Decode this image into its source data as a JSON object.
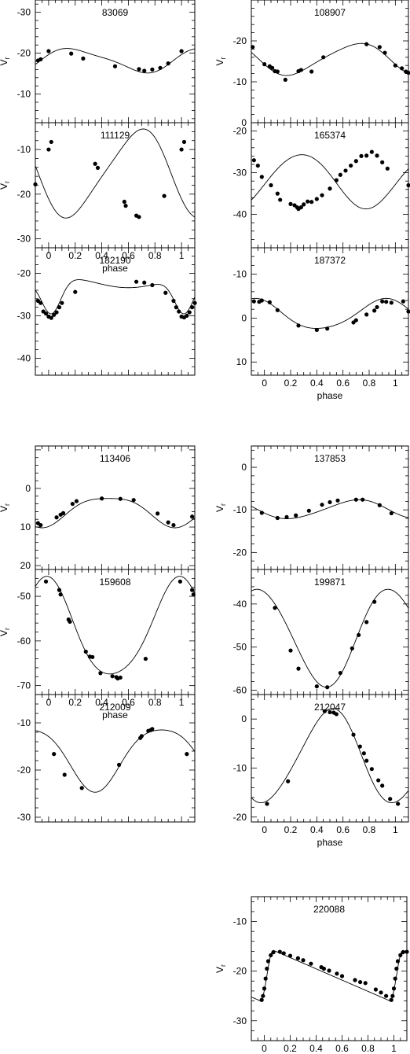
{
  "figure": {
    "xlabel": "phase",
    "ylabel": "V",
    "ylabel_sub": "r"
  },
  "chart_data": [
    {
      "id": "83069",
      "type": "scatter",
      "title": "83069",
      "xlabel": "",
      "ylabel": "Vr",
      "xlim": [
        -0.1,
        1.1
      ],
      "ylim": [
        -33,
        -3
      ],
      "invert_y": true,
      "xticks": [],
      "yticks": [
        -10,
        -20,
        -30
      ],
      "points": [
        [
          -0.08,
          -18.2
        ],
        [
          -0.06,
          -18.5
        ],
        [
          0.0,
          -20.5
        ],
        [
          0.17,
          -19.9
        ],
        [
          0.26,
          -18.7
        ],
        [
          0.5,
          -16.8
        ],
        [
          0.68,
          -16.1
        ],
        [
          0.72,
          -15.7
        ],
        [
          0.78,
          -16.0
        ],
        [
          0.84,
          -16.4
        ],
        [
          0.9,
          -17.5
        ],
        [
          1.0,
          -20.5
        ]
      ],
      "curve": {
        "mean": -18.3,
        "amp": 2.8,
        "phase_max": 0.7,
        "harm2": 0.6,
        "harm2_phase": 0.3
      }
    },
    {
      "id": "108907",
      "type": "scatter",
      "title": "108907",
      "xlabel": "",
      "ylabel": "Vr",
      "xlim": [
        -0.1,
        1.1
      ],
      "ylim": [
        -30,
        0
      ],
      "invert_y": false,
      "xticks": [],
      "yticks": [
        0,
        -10,
        -20
      ],
      "points": [
        [
          -0.09,
          -18.5
        ],
        [
          0.0,
          -14.3
        ],
        [
          0.04,
          -13.8
        ],
        [
          0.06,
          -13.4
        ],
        [
          0.08,
          -12.6
        ],
        [
          0.1,
          -12.5
        ],
        [
          0.16,
          -10.5
        ],
        [
          0.26,
          -12.6
        ],
        [
          0.28,
          -12.9
        ],
        [
          0.36,
          -12.5
        ],
        [
          0.45,
          -16.0
        ],
        [
          0.78,
          -19.2
        ],
        [
          0.88,
          -18.5
        ],
        [
          0.92,
          -17.1
        ],
        [
          1.0,
          -14.0
        ],
        [
          1.05,
          -13.3
        ],
        [
          1.08,
          -12.5
        ],
        [
          1.1,
          -12.2
        ]
      ],
      "curve": {
        "mean": -15.6,
        "amp": 3.8,
        "phase_max": 0.2,
        "harm2": 0.5,
        "harm2_phase": 0.1
      }
    },
    {
      "id": "111129",
      "type": "scatter",
      "title": "111129",
      "xlabel": "phase",
      "ylabel": "Vr",
      "xlim": [
        -0.1,
        1.1
      ],
      "ylim": [
        -4,
        -32
      ],
      "invert_y": false,
      "xticks": [
        0,
        0.2,
        0.4,
        0.6,
        0.8,
        1
      ],
      "yticks": [
        -10,
        -20,
        -30
      ],
      "points": [
        [
          -0.1,
          -17.8
        ],
        [
          0.0,
          -10.0
        ],
        [
          0.02,
          -8.3
        ],
        [
          0.35,
          -13.2
        ],
        [
          0.37,
          -14.1
        ],
        [
          0.57,
          -21.7
        ],
        [
          0.58,
          -22.6
        ],
        [
          0.66,
          -24.8
        ],
        [
          0.68,
          -25.1
        ],
        [
          0.87,
          -20.4
        ],
        [
          1.0,
          -10.0
        ],
        [
          1.02,
          -8.3
        ]
      ],
      "curve": {
        "mean": -15.3,
        "amp": 9.6,
        "phase_max": 0.67,
        "harm2": 1.4,
        "harm2_phase": 0.8
      }
    },
    {
      "id": "165374",
      "type": "scatter",
      "title": "165374",
      "xlabel": "",
      "ylabel": "",
      "xlim": [
        -0.1,
        1.1
      ],
      "ylim": [
        -18,
        -48
      ],
      "invert_y": false,
      "xticks": [],
      "yticks": [
        -20,
        -30,
        -40
      ],
      "points": [
        [
          -0.08,
          -27.0
        ],
        [
          -0.05,
          -28.3
        ],
        [
          -0.02,
          -31.0
        ],
        [
          0.05,
          -33.0
        ],
        [
          0.1,
          -35.0
        ],
        [
          0.12,
          -36.5
        ],
        [
          0.2,
          -37.5
        ],
        [
          0.23,
          -37.8
        ],
        [
          0.25,
          -38.3
        ],
        [
          0.26,
          -38.7
        ],
        [
          0.28,
          -38.3
        ],
        [
          0.3,
          -37.6
        ],
        [
          0.33,
          -36.9
        ],
        [
          0.36,
          -37.0
        ],
        [
          0.4,
          -36.3
        ],
        [
          0.44,
          -35.4
        ],
        [
          0.5,
          -33.8
        ],
        [
          0.55,
          -31.8
        ],
        [
          0.58,
          -30.5
        ],
        [
          0.62,
          -29.5
        ],
        [
          0.66,
          -28.3
        ],
        [
          0.7,
          -27.2
        ],
        [
          0.74,
          -26.0
        ],
        [
          0.78,
          -25.9
        ],
        [
          0.82,
          -25.0
        ],
        [
          0.86,
          -25.9
        ],
        [
          0.9,
          -27.5
        ],
        [
          0.94,
          -29.0
        ],
        [
          1.1,
          -33.0
        ]
      ],
      "curve": {
        "mean": -31.9,
        "amp": 6.5,
        "phase_max": 0.28,
        "harm2": 0.3,
        "harm2_phase": 0.5
      }
    },
    {
      "id": "182190",
      "type": "scatter",
      "title": "182190",
      "xlabel": "",
      "ylabel": "",
      "xlim": [
        -0.1,
        1.1
      ],
      "ylim": [
        -14,
        -44
      ],
      "invert_y": false,
      "xticks": [],
      "yticks": [
        -20,
        -30,
        -40
      ],
      "points": [
        [
          -0.08,
          -26.5
        ],
        [
          -0.06,
          -27.0
        ],
        [
          -0.04,
          -29.0
        ],
        [
          -0.02,
          -29.5
        ],
        [
          0.0,
          -30.2
        ],
        [
          0.02,
          -30.5
        ],
        [
          0.04,
          -29.8
        ],
        [
          0.06,
          -29.2
        ],
        [
          0.08,
          -28.0
        ],
        [
          0.1,
          -27.0
        ],
        [
          0.2,
          -24.4
        ],
        [
          0.66,
          -22.0
        ],
        [
          0.72,
          -22.2
        ],
        [
          0.78,
          -22.8
        ],
        [
          0.88,
          -24.6
        ],
        [
          0.94,
          -26.5
        ],
        [
          0.96,
          -28.0
        ],
        [
          0.98,
          -29.0
        ],
        [
          1.0,
          -30.2
        ],
        [
          1.02,
          -30.4
        ],
        [
          1.04,
          -30.0
        ],
        [
          1.06,
          -29.2
        ],
        [
          1.08,
          -28.0
        ],
        [
          1.1,
          -27.0
        ]
      ],
      "curve": {
        "mean": -23.4,
        "amp": 0.0,
        "phase_max": 0.5,
        "harm2": 0.0,
        "harm2_phase": 0.0,
        "eccentric": true,
        "base": -22.2,
        "dip": -8.4,
        "dip_phase": 0.02,
        "dip_width": 0.16
      }
    },
    {
      "id": "187372",
      "type": "scatter",
      "title": "187372",
      "xlabel": "phase",
      "ylabel": "",
      "xlim": [
        -0.1,
        1.1
      ],
      "ylim": [
        -16,
        13
      ],
      "invert_y": false,
      "xticks": [
        0,
        0.2,
        0.4,
        0.6,
        0.8,
        1
      ],
      "yticks": [
        10,
        0,
        -10
      ],
      "points": [
        [
          -0.08,
          -3.8
        ],
        [
          -0.04,
          -3.7
        ],
        [
          -0.02,
          -4.0
        ],
        [
          0.04,
          -3.6
        ],
        [
          0.1,
          -1.8
        ],
        [
          0.26,
          1.7
        ],
        [
          0.4,
          2.7
        ],
        [
          0.48,
          2.4
        ],
        [
          0.68,
          1.0
        ],
        [
          0.7,
          0.5
        ],
        [
          0.78,
          -0.8
        ],
        [
          0.84,
          -1.7
        ],
        [
          0.86,
          -2.5
        ],
        [
          0.9,
          -3.8
        ],
        [
          0.93,
          -3.7
        ],
        [
          0.97,
          -3.5
        ],
        [
          1.06,
          -3.8
        ],
        [
          1.1,
          -1.5
        ]
      ],
      "curve": {
        "mean": -0.7,
        "amp": 3.4,
        "phase_max": 0.42,
        "harm2": 0.4,
        "harm2_phase": 0.2
      }
    },
    {
      "id": "113406",
      "type": "scatter",
      "title": "113406",
      "xlabel": "",
      "ylabel": "Vr",
      "xlim": [
        -0.1,
        1.1
      ],
      "ylim": [
        -11,
        21
      ],
      "invert_y": false,
      "xticks": [],
      "yticks": [
        20,
        10,
        0
      ],
      "points": [
        [
          -0.08,
          9.0
        ],
        [
          -0.06,
          9.5
        ],
        [
          0.06,
          7.5
        ],
        [
          0.09,
          6.8
        ],
        [
          0.11,
          6.4
        ],
        [
          0.18,
          4.0
        ],
        [
          0.21,
          3.3
        ],
        [
          0.4,
          2.6
        ],
        [
          0.54,
          2.7
        ],
        [
          0.64,
          3.0
        ],
        [
          0.82,
          6.5
        ],
        [
          0.9,
          8.8
        ],
        [
          0.94,
          9.5
        ],
        [
          1.08,
          7.3
        ]
      ],
      "curve": {
        "mean": 5.6,
        "amp": 3.8,
        "phase_max": 0.95,
        "harm2": 0.8,
        "harm2_phase": 0.45
      }
    },
    {
      "id": "137853",
      "type": "scatter",
      "title": "137853",
      "xlabel": "",
      "ylabel": "Vr",
      "xlim": [
        -0.1,
        1.1
      ],
      "ylim": [
        5,
        -24
      ],
      "invert_y": true,
      "xticks": [],
      "yticks": [
        0,
        -10,
        -20
      ],
      "points": [
        [
          -0.02,
          -10.7
        ],
        [
          0.1,
          -11.9
        ],
        [
          0.17,
          -11.7
        ],
        [
          0.24,
          -11.3
        ],
        [
          0.34,
          -10.2
        ],
        [
          0.44,
          -8.8
        ],
        [
          0.5,
          -8.2
        ],
        [
          0.56,
          -7.8
        ],
        [
          0.7,
          -7.6
        ],
        [
          0.75,
          -7.6
        ],
        [
          0.88,
          -8.9
        ],
        [
          0.97,
          -10.8
        ]
      ],
      "curve": {
        "mean": -9.9,
        "amp": 2.2,
        "phase_max": 0.7,
        "harm2": 0.2,
        "harm2_phase": 0.3
      }
    },
    {
      "id": "159608",
      "type": "scatter",
      "title": "159608",
      "xlabel": "phase",
      "ylabel": "Vr",
      "xlim": [
        -0.1,
        1.1
      ],
      "ylim": [
        -44,
        -72
      ],
      "invert_y": false,
      "xticks": [
        0,
        0.2,
        0.4,
        0.6,
        0.8,
        1
      ],
      "yticks": [
        -50,
        -60,
        -70
      ],
      "points": [
        [
          -0.02,
          -46.7
        ],
        [
          0.08,
          -48.6
        ],
        [
          0.09,
          -49.6
        ],
        [
          0.15,
          -55.2
        ],
        [
          0.16,
          -55.7
        ],
        [
          0.28,
          -62.4
        ],
        [
          0.31,
          -63.5
        ],
        [
          0.33,
          -63.6
        ],
        [
          0.39,
          -67.2
        ],
        [
          0.48,
          -67.9
        ],
        [
          0.51,
          -68.1
        ],
        [
          0.52,
          -68.4
        ],
        [
          0.54,
          -68.2
        ],
        [
          0.73,
          -64.0
        ],
        [
          0.99,
          -46.7
        ],
        [
          1.08,
          -48.6
        ],
        [
          1.09,
          -49.6
        ]
      ],
      "curve": {
        "mean": -57.8,
        "amp": 10.9,
        "phase_max": 0.98,
        "harm2": 1.4,
        "harm2_phase": 0.5
      }
    },
    {
      "id": "199871",
      "type": "scatter",
      "title": "199871",
      "xlabel": "",
      "ylabel": "",
      "xlim": [
        -0.1,
        1.1
      ],
      "ylim": [
        -32,
        -61
      ],
      "invert_y": false,
      "xticks": [],
      "yticks": [
        -40,
        -50,
        -60
      ],
      "points": [
        [
          0.08,
          -40.9
        ],
        [
          0.2,
          -50.8
        ],
        [
          0.26,
          -55.0
        ],
        [
          0.4,
          -59.1
        ],
        [
          0.48,
          -59.3
        ],
        [
          0.58,
          -56.0
        ],
        [
          0.67,
          -50.3
        ],
        [
          0.72,
          -47.2
        ],
        [
          0.78,
          -44.2
        ],
        [
          0.84,
          -39.5
        ]
      ],
      "curve": {
        "mean": -47.7,
        "amp": 11.3,
        "phase_max": 0.96,
        "harm2": 0.6,
        "harm2_phase": 0.3
      }
    },
    {
      "id": "212009",
      "type": "scatter",
      "title": "212009",
      "xlabel": "",
      "ylabel": "",
      "xlim": [
        -0.1,
        1.1
      ],
      "ylim": [
        -4,
        -31
      ],
      "invert_y": false,
      "xticks": [],
      "yticks": [
        -10,
        -20,
        -30
      ],
      "points": [
        [
          0.04,
          -16.6
        ],
        [
          0.12,
          -21.0
        ],
        [
          0.25,
          -23.8
        ],
        [
          0.53,
          -18.9
        ],
        [
          0.69,
          -13.2
        ],
        [
          0.7,
          -12.8
        ],
        [
          0.75,
          -11.7
        ],
        [
          0.77,
          -11.5
        ],
        [
          0.78,
          -11.3
        ],
        [
          1.04,
          -16.6
        ]
      ],
      "curve": {
        "mean": -17.1,
        "amp": 6.6,
        "phase_max": 0.85,
        "harm2": 1.0,
        "harm2_phase": 0.1
      }
    },
    {
      "id": "212047",
      "type": "scatter",
      "title": "212047",
      "xlabel": "phase",
      "ylabel": "",
      "xlim": [
        -0.1,
        1.1
      ],
      "ylim": [
        5,
        -21
      ],
      "invert_y": true,
      "xticks": [
        0,
        0.2,
        0.4,
        0.6,
        0.8,
        1
      ],
      "yticks": [
        0,
        -10,
        -20
      ],
      "points": [
        [
          0.02,
          -17.3
        ],
        [
          0.18,
          -12.7
        ],
        [
          0.46,
          1.6
        ],
        [
          0.5,
          1.4
        ],
        [
          0.53,
          1.3
        ],
        [
          0.55,
          1.0
        ],
        [
          0.68,
          -3.2
        ],
        [
          0.73,
          -5.6
        ],
        [
          0.76,
          -7.0
        ],
        [
          0.78,
          -8.5
        ],
        [
          0.82,
          -10.2
        ],
        [
          0.87,
          -12.5
        ],
        [
          0.9,
          -13.6
        ],
        [
          0.96,
          -16.3
        ],
        [
          1.02,
          -17.3
        ]
      ],
      "curve": {
        "mean": -7.7,
        "amp": 9.5,
        "phase_max": 0.5,
        "harm2": 0.8,
        "harm2_phase": 0.6
      }
    },
    {
      "id": "220088",
      "type": "scatter",
      "title": "220088",
      "xlabel": "phase",
      "ylabel": "Vr",
      "xlim": [
        -0.1,
        1.1
      ],
      "ylim": [
        -5,
        -34
      ],
      "invert_y": false,
      "xticks": [
        0,
        0.2,
        0.4,
        0.6,
        0.8,
        1
      ],
      "yticks": [
        -10,
        -20,
        -30
      ],
      "points": [
        [
          -0.02,
          -25.8
        ],
        [
          -0.01,
          -25.0
        ],
        [
          0.0,
          -23.5
        ],
        [
          0.01,
          -21.5
        ],
        [
          0.02,
          -19.5
        ],
        [
          0.03,
          -18.0
        ],
        [
          0.05,
          -16.8
        ],
        [
          0.07,
          -16.2
        ],
        [
          0.12,
          -16.1
        ],
        [
          0.15,
          -16.4
        ],
        [
          0.2,
          -16.9
        ],
        [
          0.26,
          -17.4
        ],
        [
          0.3,
          -17.8
        ],
        [
          0.36,
          -18.5
        ],
        [
          0.44,
          -19.2
        ],
        [
          0.46,
          -19.5
        ],
        [
          0.5,
          -19.9
        ],
        [
          0.56,
          -20.5
        ],
        [
          0.6,
          -21.0
        ],
        [
          0.7,
          -21.8
        ],
        [
          0.74,
          -22.2
        ],
        [
          0.78,
          -22.4
        ],
        [
          0.86,
          -23.7
        ],
        [
          0.9,
          -24.3
        ],
        [
          0.94,
          -25.0
        ],
        [
          0.98,
          -25.8
        ],
        [
          0.99,
          -25.0
        ],
        [
          1.0,
          -23.5
        ],
        [
          1.01,
          -21.5
        ],
        [
          1.02,
          -19.5
        ],
        [
          1.03,
          -18.0
        ],
        [
          1.05,
          -16.8
        ],
        [
          1.07,
          -16.2
        ],
        [
          1.1,
          -16.1
        ]
      ],
      "curve": {
        "sawtooth": true,
        "rise_start": -0.03,
        "rise_end": 0.07,
        "min": -26.0,
        "max": -15.8
      }
    }
  ]
}
